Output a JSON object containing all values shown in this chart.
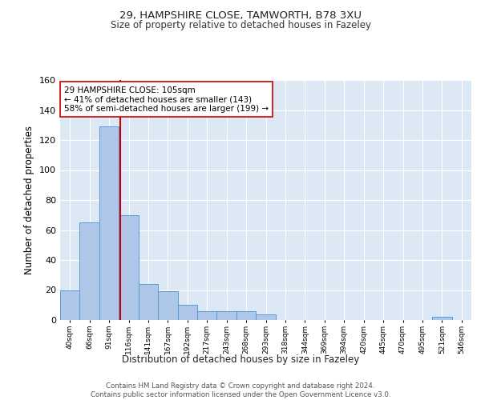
{
  "title1": "29, HAMPSHIRE CLOSE, TAMWORTH, B78 3XU",
  "title2": "Size of property relative to detached houses in Fazeley",
  "xlabel": "Distribution of detached houses by size in Fazeley",
  "ylabel": "Number of detached properties",
  "bar_labels": [
    "40sqm",
    "66sqm",
    "91sqm",
    "116sqm",
    "141sqm",
    "167sqm",
    "192sqm",
    "217sqm",
    "243sqm",
    "268sqm",
    "293sqm",
    "318sqm",
    "344sqm",
    "369sqm",
    "394sqm",
    "420sqm",
    "445sqm",
    "470sqm",
    "495sqm",
    "521sqm",
    "546sqm"
  ],
  "bar_values": [
    20,
    65,
    129,
    70,
    24,
    19,
    10,
    6,
    6,
    6,
    4,
    0,
    0,
    0,
    0,
    0,
    0,
    0,
    0,
    2,
    0
  ],
  "bar_color": "#aec6e8",
  "bar_edge_color": "#5b9bd5",
  "background_color": "#dde8f5",
  "grid_color": "#ffffff",
  "vline_color": "#cc0000",
  "annotation_text": "29 HAMPSHIRE CLOSE: 105sqm\n← 41% of detached houses are smaller (143)\n58% of semi-detached houses are larger (199) →",
  "annotation_box_color": "#ffffff",
  "annotation_box_edge": "#cc0000",
  "ylim": [
    0,
    160
  ],
  "yticks": [
    0,
    20,
    40,
    60,
    80,
    100,
    120,
    140,
    160
  ],
  "footnote": "Contains HM Land Registry data © Crown copyright and database right 2024.\nContains public sector information licensed under the Open Government Licence v3.0."
}
